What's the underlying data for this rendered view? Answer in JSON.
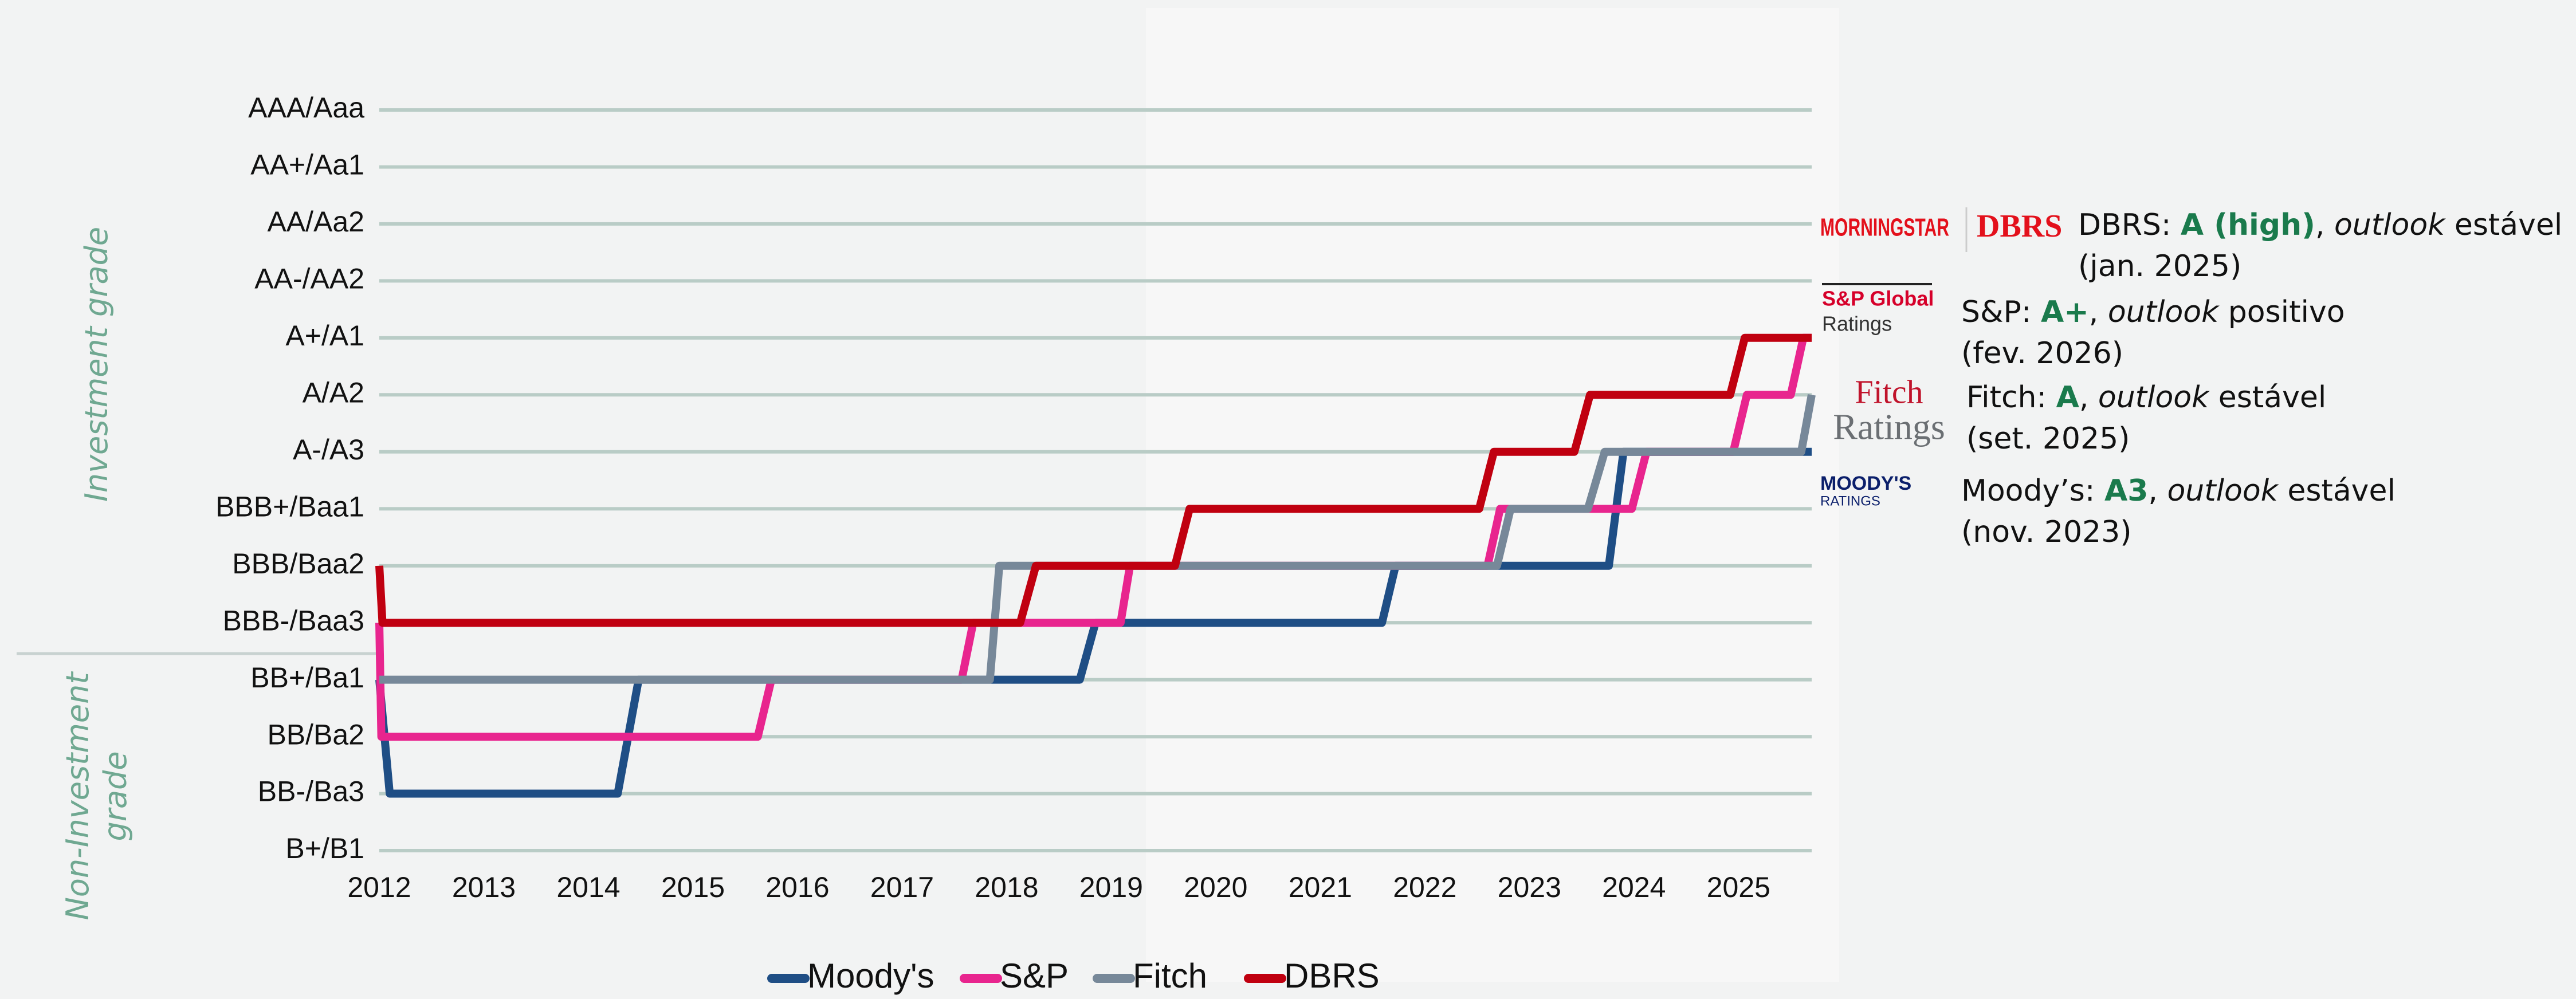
{
  "chart_data": {
    "type": "line",
    "step_style": "sloped",
    "xlim": [
      2012,
      2025.7
    ],
    "xticks": [
      2012,
      2013,
      2014,
      2015,
      2016,
      2017,
      2018,
      2019,
      2020,
      2021,
      2022,
      2023,
      2024,
      2025
    ],
    "ylim": [
      0,
      13
    ],
    "yticks": [
      {
        "value": 0,
        "label": "B+/B1"
      },
      {
        "value": 1,
        "label": "BB-/Ba3"
      },
      {
        "value": 2,
        "label": "BB/Ba2"
      },
      {
        "value": 3,
        "label": "BB+/Ba1"
      },
      {
        "value": 4,
        "label": "BBB-/Baa3"
      },
      {
        "value": 5,
        "label": "BBB/Baa2"
      },
      {
        "value": 6,
        "label": "BBB+/Baa1"
      },
      {
        "value": 7,
        "label": "A-/A3"
      },
      {
        "value": 8,
        "label": "A/A2"
      },
      {
        "value": 9,
        "label": "A+/A1"
      },
      {
        "value": 10,
        "label": "AA-/AA2"
      },
      {
        "value": 11,
        "label": "AA/Aa2"
      },
      {
        "value": 12,
        "label": "AA+/Aa1"
      },
      {
        "value": 13,
        "label": "AAA/Aaa"
      }
    ],
    "grid": true,
    "group_labels": [
      [
        "Investment grade"
      ],
      [
        "Non-Investment",
        "grade"
      ]
    ],
    "series": [
      {
        "name": "Moody's",
        "color": "#1f4e85",
        "x": [
          2012,
          2012.1,
          2014.28,
          2014.48,
          2018.7,
          2018.85,
          2021.59,
          2021.72,
          2023.76,
          2023.9,
          2025.7
        ],
        "values": [
          3,
          1,
          1,
          3,
          3,
          4,
          4,
          5,
          5,
          7,
          7
        ]
      },
      {
        "name": "S&P",
        "color": "#e8258e",
        "x": [
          2012,
          2012.02,
          2015.62,
          2015.75,
          2017.57,
          2017.68,
          2019.09,
          2019.18,
          2022.6,
          2022.72,
          2023.98,
          2024.12,
          2024.95,
          2025.08,
          2025.5,
          2025.62,
          2025.7
        ],
        "values": [
          4,
          2,
          2,
          3,
          3,
          4,
          4,
          5,
          5,
          6,
          6,
          7,
          7,
          8,
          8,
          9,
          9
        ]
      },
      {
        "name": "Fitch",
        "color": "#778899",
        "x": [
          2012,
          2017.84,
          2017.93,
          2022.69,
          2022.82,
          2023.56,
          2023.72,
          2025.6,
          2025.7
        ],
        "values": [
          3,
          3,
          5,
          5,
          6,
          6,
          7,
          7,
          8
        ]
      },
      {
        "name": "DBRS",
        "color": "#c00010",
        "x": [
          2012,
          2012.03,
          2018.13,
          2018.28,
          2019.61,
          2019.75,
          2022.52,
          2022.66,
          2023.43,
          2023.58,
          2024.92,
          2025.06,
          2025.7
        ],
        "values": [
          5,
          4,
          4,
          5,
          5,
          6,
          6,
          7,
          7,
          8,
          8,
          9,
          9
        ]
      }
    ],
    "annotations": [
      {
        "logo": [
          "MORNINGSTAR",
          "DBRS"
        ],
        "lines": [
          [
            {
              "text": "DBRS: "
            },
            {
              "text": "A (high)",
              "style": "bold"
            },
            {
              "text": ", "
            },
            {
              "text": "outlook",
              "style": "italic"
            },
            {
              "text": " estável"
            }
          ],
          [
            {
              "text": "(jan. 2025)"
            }
          ]
        ]
      },
      {
        "logo": [
          "S&P Global",
          "Ratings"
        ],
        "lines": [
          [
            {
              "text": "S&P: "
            },
            {
              "text": "A+",
              "style": "bold"
            },
            {
              "text": ", "
            },
            {
              "text": "outlook",
              "style": "italic"
            },
            {
              "text": " positivo"
            }
          ],
          [
            {
              "text": "(fev. 2026)"
            }
          ]
        ]
      },
      {
        "logo": [
          "Fitch",
          "Ratings"
        ],
        "lines": [
          [
            {
              "text": "Fitch: "
            },
            {
              "text": "A",
              "style": "bold"
            },
            {
              "text": ", "
            },
            {
              "text": "outlook",
              "style": "italic"
            },
            {
              "text": " estável"
            }
          ],
          [
            {
              "text": "(set. 2025)"
            }
          ]
        ]
      },
      {
        "logo": [
          "MOODY'S",
          "RATINGS"
        ],
        "lines": [
          [
            {
              "text": "Moody’s: "
            },
            {
              "text": "A3",
              "style": "bold"
            },
            {
              "text": ", "
            },
            {
              "text": "outlook",
              "style": "italic"
            },
            {
              "text": " estável"
            }
          ],
          [
            {
              "text": "(nov. 2023)"
            }
          ]
        ]
      }
    ]
  }
}
